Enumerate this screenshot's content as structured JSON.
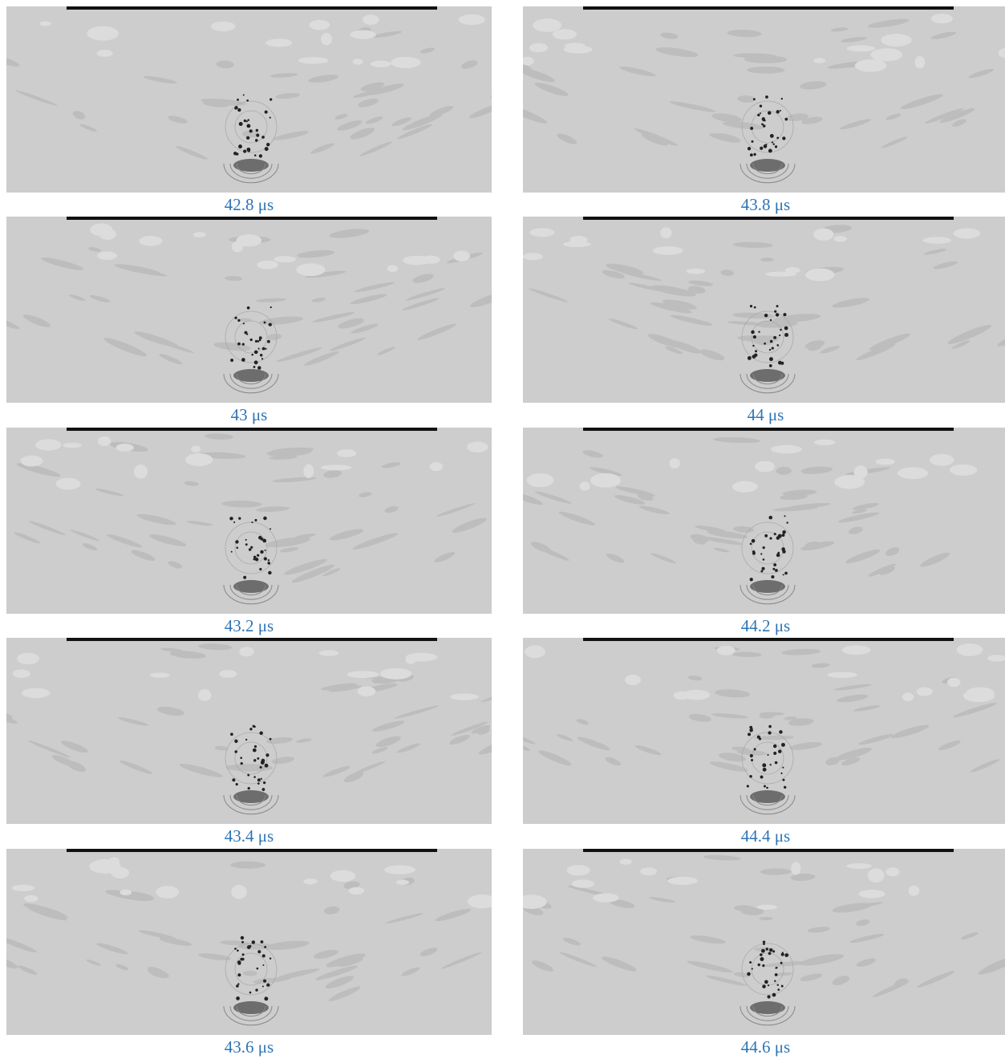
{
  "panels": [
    {
      "caption": "42.8 μs"
    },
    {
      "caption": "43 μs"
    },
    {
      "caption": "43.2 μs"
    },
    {
      "caption": "43.4 μs"
    },
    {
      "caption": "43.6 μs"
    },
    {
      "caption": "43.8 μs"
    },
    {
      "caption": "44 μs"
    },
    {
      "caption": "44.2 μs"
    },
    {
      "caption": "44.4 μs"
    },
    {
      "caption": "44.6 μs"
    }
  ]
}
